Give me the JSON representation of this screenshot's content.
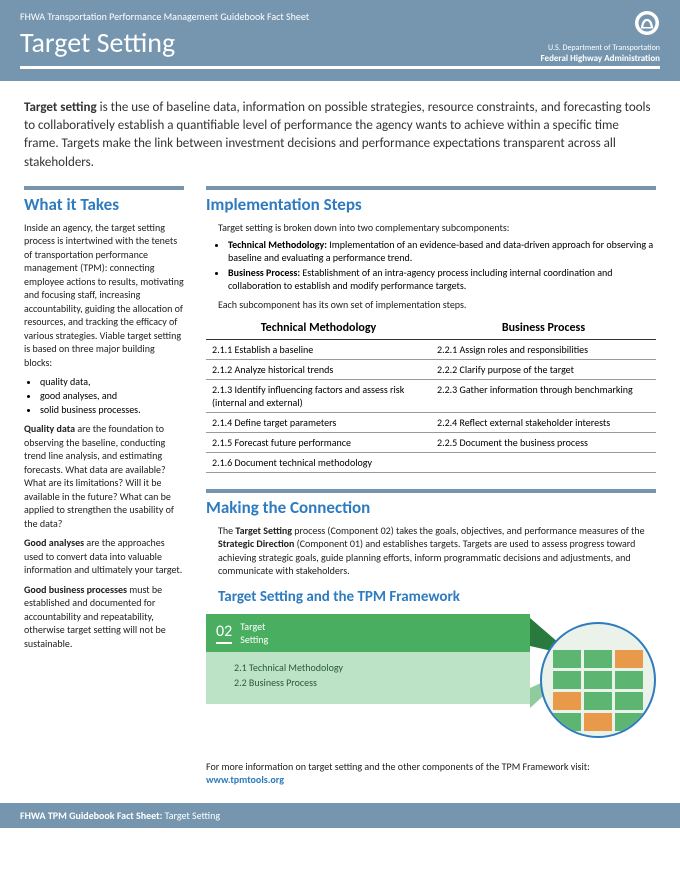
{
  "colors": {
    "header_bg": "#7596ae",
    "accent": "#2e7bbf",
    "green": "#4aae60",
    "green_light": "#bde3c7"
  },
  "header": {
    "topline": "FHWA Transportation Performance Management Guidebook Fact Sheet",
    "title": "Target Setting",
    "dept": "U.S. Department of Transportation",
    "admin": "Federal Highway Administration"
  },
  "intro": {
    "lead_bold": "Target setting",
    "lead_rest": " is the use of baseline data, information on possible strategies, resource constraints, and forecasting tools to collaboratively establish a quantifiable level of performance the agency wants to achieve within a specific time frame. Targets make the link between investment decisions and performance expectations transparent across all stakeholders."
  },
  "sidebar": {
    "title": "What it Takes",
    "p1": "Inside an agency, the target setting process is intertwined with the tenets of transportation performance management (TPM): connecting employee actions to results, motivating and focusing staff, increasing accountability, guiding the allocation of resources, and tracking the efficacy of various strategies. Viable target setting is based on three major building blocks:",
    "bullets": [
      "quality data,",
      "good analyses, and",
      "solid business processes."
    ],
    "p2_b": "Quality data",
    "p2": " are the foundation to observing the baseline, conducting trend line analysis, and estimating forecasts.  What data are available? What are its limitations? Will it be available in the future? What can be applied to strengthen the usability of the data?",
    "p3_b": "Good analyses",
    "p3": " are the approaches used to convert data into valuable information and ultimately your target.",
    "p4_b": "Good business processes",
    "p4": " must be established and documented for accountability and repeatability, otherwise target setting will not be sustainable."
  },
  "impl": {
    "title": "Implementation Steps",
    "intro": "Target setting is broken down into two complementary subcomponents:",
    "sub1_b": "Technical Methodology:",
    "sub1": " Implementation of an evidence-based and data-driven approach for observing a baseline and evaluating a performance trend.",
    "sub2_b": "Business Process:",
    "sub2": " Establishment of an intra-agency process including internal coordination and collaboration to establish and modify performance targets.",
    "note": "Each subcomponent has its own set of implementation steps.",
    "col1": "Technical Methodology",
    "col2": "Business Process",
    "rows": [
      [
        "2.1.1 Establish a baseline",
        "2.2.1 Assign roles and responsibilities"
      ],
      [
        "2.1.2 Analyze historical trends",
        "2.2.2 Clarify purpose of the target"
      ],
      [
        "2.1.3 Identify influencing factors and assess risk (internal and external)",
        "2.2.3 Gather information through benchmarking"
      ],
      [
        "2.1.4 Define target parameters",
        "2.2.4 Reflect external stakeholder interests"
      ],
      [
        "2.1.5 Forecast future performance",
        "2.2.5 Document the business process"
      ],
      [
        "2.1.6 Document technical methodology",
        ""
      ]
    ]
  },
  "conn": {
    "title": "Making the Connection",
    "p_pre": "The ",
    "p_b1": "Target Setting",
    "p_mid1": " process (Component 02) takes the goals, objectives, and performance measures of the ",
    "p_b2": "Strategic Direction",
    "p_mid2": " (Component 01) and establishes targets.  Targets are used to assess progress toward achieving strategic goals, guide planning efforts, inform programmatic decisions and adjustments, and communicate with stakeholders.",
    "subtitle": "Target Setting and the TPM Framework",
    "fw_num": "02",
    "fw_title": "Target\nSetting",
    "fw_items": [
      "2.1 Technical Methodology",
      "2.2 Business Process"
    ],
    "more": "For more information on target setting and the other components of the TPM Framework visit:",
    "link": "www.tpmtools.org"
  },
  "footer": {
    "bold": "FHWA TPM Guidebook Fact Sheet:",
    "rest": " Target Setting"
  }
}
